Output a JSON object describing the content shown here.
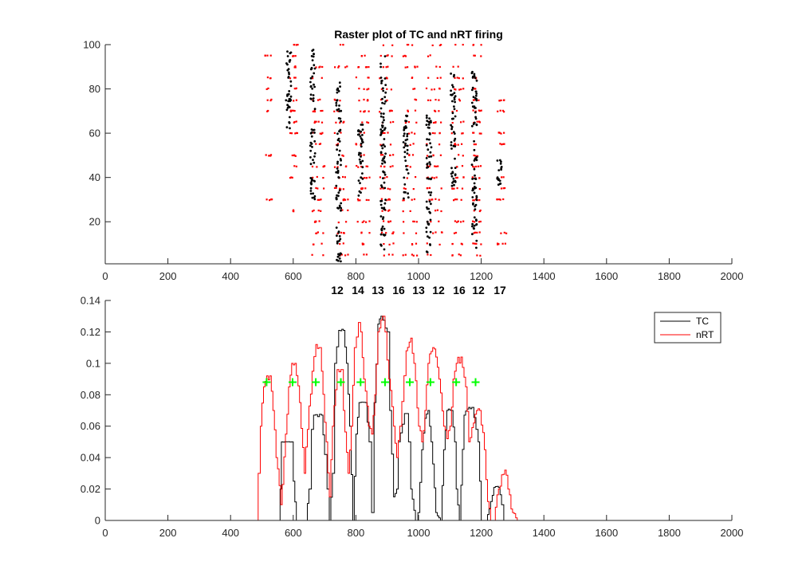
{
  "figure": {
    "title": "Raster plot of TC and nRT firing",
    "cycle_counts": [
      "12",
      "14",
      "13",
      "16",
      "13",
      "12",
      "16",
      "12",
      "17"
    ]
  },
  "colors": {
    "tc": "#000000",
    "nrt": "#ff0000",
    "markers": "#00ff00",
    "axis": "#262626",
    "background": "#ffffff"
  },
  "chart_data": [
    {
      "type": "scatter",
      "title": "Raster plot of TC and nRT firing",
      "xlabel": "",
      "ylabel": "",
      "xlim": [
        0,
        2000
      ],
      "ylim": [
        1,
        100
      ],
      "xticks": [
        0,
        200,
        400,
        600,
        800,
        1000,
        1200,
        1400,
        1600,
        1800,
        2000
      ],
      "yticks": [
        20,
        40,
        60,
        80,
        100
      ],
      "grid": false,
      "series": [
        {
          "name": "TC",
          "bursts": [
            {
              "x": 585,
              "ymin": 62,
              "ymax": 100
            },
            {
              "x": 662,
              "ymin": 30,
              "ymax": 98
            },
            {
              "x": 745,
              "ymin": 2,
              "ymax": 84
            },
            {
              "x": 815,
              "ymin": 30,
              "ymax": 66
            },
            {
              "x": 887,
              "ymin": 6,
              "ymax": 95
            },
            {
              "x": 960,
              "ymin": 30,
              "ymax": 68
            },
            {
              "x": 1033,
              "ymin": 6,
              "ymax": 68
            },
            {
              "x": 1110,
              "ymin": 36,
              "ymax": 88
            },
            {
              "x": 1178,
              "ymin": 8,
              "ymax": 88
            },
            {
              "x": 1258,
              "ymin": 36,
              "ymax": 49
            }
          ]
        },
        {
          "name": "nRT",
          "rows": [
            5,
            10,
            15,
            20,
            25,
            30,
            35,
            40,
            45,
            50,
            55,
            60,
            65,
            70,
            75,
            80,
            85,
            90,
            95,
            100
          ],
          "bursts": [
            {
              "start": 508,
              "end": 532,
              "rows": [
                30,
                50,
                70,
                75,
                80,
                85,
                95
              ]
            },
            {
              "start": 590,
              "end": 615,
              "rows": [
                25,
                40,
                45,
                50,
                60,
                65,
                70,
                75,
                80,
                85,
                90,
                95,
                100
              ]
            },
            {
              "start": 660,
              "end": 700,
              "rows": [
                5,
                10,
                15,
                20,
                25,
                30,
                35,
                40,
                45,
                55,
                60,
                65,
                70,
                75,
                85,
                90
              ]
            },
            {
              "start": 730,
              "end": 775,
              "rows": [
                5,
                10,
                15,
                20,
                25,
                30,
                35,
                40,
                45,
                50,
                55,
                60,
                65,
                70,
                75,
                90,
                100
              ]
            },
            {
              "start": 800,
              "end": 845,
              "rows": [
                5,
                10,
                15,
                20,
                30,
                35,
                40,
                45,
                50,
                55,
                60,
                65,
                70,
                75,
                80,
                85,
                90,
                95
              ]
            },
            {
              "start": 875,
              "end": 920,
              "rows": [
                5,
                10,
                15,
                20,
                25,
                30,
                35,
                40,
                45,
                50,
                55,
                60,
                65,
                70,
                75,
                80,
                85,
                90,
                95,
                100
              ]
            },
            {
              "start": 950,
              "end": 1000,
              "rows": [
                5,
                10,
                15,
                20,
                25,
                30,
                35,
                40,
                45,
                50,
                55,
                60,
                65,
                70,
                75,
                80,
                85,
                90,
                95,
                100
              ]
            },
            {
              "start": 1025,
              "end": 1075,
              "rows": [
                5,
                10,
                15,
                20,
                25,
                30,
                35,
                40,
                45,
                50,
                55,
                60,
                65,
                70,
                75,
                80,
                85,
                90,
                95,
                100
              ]
            },
            {
              "start": 1105,
              "end": 1145,
              "rows": [
                5,
                10,
                15,
                20,
                30,
                35,
                40,
                45,
                50,
                55,
                60,
                65,
                70,
                75,
                80,
                85,
                90,
                100
              ]
            },
            {
              "start": 1172,
              "end": 1200,
              "rows": [
                5,
                10,
                15,
                20,
                25,
                30,
                35,
                40,
                45,
                50,
                55,
                60,
                65,
                70,
                75,
                80,
                85,
                95,
                100
              ]
            },
            {
              "start": 1250,
              "end": 1280,
              "rows": [
                10,
                15,
                30,
                35,
                40,
                55,
                60,
                70,
                75
              ]
            }
          ]
        }
      ]
    },
    {
      "type": "line",
      "title": "",
      "xlabel": "",
      "ylabel": "",
      "xlim": [
        0,
        2000
      ],
      "ylim": [
        0,
        0.14
      ],
      "xticks": [
        0,
        200,
        400,
        600,
        800,
        1000,
        1200,
        1400,
        1600,
        1800,
        2000
      ],
      "yticks": [
        0,
        0.02,
        0.04,
        0.06,
        0.08,
        0.1,
        0.12,
        0.14
      ],
      "ytick_labels": [
        "0",
        "0.02",
        "0.04",
        "0.06",
        "0.08",
        "0.1",
        "0.12",
        "0.14"
      ],
      "grid": false,
      "legend": {
        "position": "top-right",
        "entries": [
          "TC",
          "nRT"
        ]
      },
      "series": [
        {
          "name": "TC",
          "x": [
            0,
            550,
            558,
            562,
            578,
            595,
            600,
            610,
            625,
            640,
            650,
            658,
            665,
            690,
            700,
            708,
            715,
            725,
            732,
            745,
            760,
            770,
            780,
            790,
            800,
            810,
            830,
            842,
            850,
            858,
            870,
            880,
            900,
            908,
            920,
            930,
            935,
            955,
            960,
            968,
            975,
            990,
            998,
            1010,
            1020,
            1030,
            1040,
            1055,
            1070,
            1080,
            1090,
            1105,
            1115,
            1120,
            1130,
            1145,
            1160,
            1170,
            1190,
            1200,
            1215,
            1230,
            1240,
            1255,
            1265,
            1272,
            1290,
            2000
          ],
          "values": [
            0,
            0,
            0.02,
            0.05,
            0.05,
            0.05,
            0.025,
            0,
            0,
            0,
            0.02,
            0.058,
            0.067,
            0.067,
            0.042,
            0.02,
            0,
            0.03,
            0.1,
            0.121,
            0.121,
            0.1,
            0.06,
            0,
            0.055,
            0.075,
            0.075,
            0.05,
            0.005,
            0.075,
            0.125,
            0.13,
            0.12,
            0.07,
            0.015,
            0.02,
            0.05,
            0.068,
            0.068,
            0.05,
            0.02,
            0,
            0.005,
            0.045,
            0.065,
            0.07,
            0.05,
            0.005,
            0,
            0.045,
            0.07,
            0.07,
            0.05,
            0.02,
            0,
            0.067,
            0.072,
            0.072,
            0.05,
            0,
            0,
            0.012,
            0.021,
            0.021,
            0.01,
            0,
            0,
            0
          ]
        },
        {
          "name": "nRT",
          "x": [
            0,
            480,
            488,
            495,
            505,
            515,
            525,
            535,
            545,
            560,
            575,
            585,
            595,
            605,
            620,
            635,
            645,
            660,
            672,
            682,
            690,
            705,
            715,
            725,
            740,
            752,
            760,
            775,
            785,
            795,
            808,
            815,
            825,
            840,
            850,
            860,
            870,
            885,
            893,
            905,
            920,
            930,
            940,
            960,
            975,
            985,
            1000,
            1010,
            1020,
            1030,
            1045,
            1055,
            1065,
            1080,
            1090,
            1100,
            1110,
            1120,
            1135,
            1150,
            1160,
            1175,
            1185,
            1195,
            1210,
            1220,
            1230,
            1240,
            1255,
            1265,
            1275,
            1285,
            1300,
            1315,
            2000
          ],
          "values": [
            0,
            0,
            0.03,
            0.06,
            0.085,
            0.092,
            0.092,
            0.07,
            0.04,
            0.01,
            0.055,
            0.085,
            0.1,
            0.1,
            0.075,
            0.03,
            0.058,
            0.095,
            0.112,
            0.11,
            0.095,
            0.05,
            0.015,
            0.06,
            0.096,
            0.096,
            0.07,
            0.03,
            0.06,
            0.11,
            0.126,
            0.12,
            0.09,
            0.06,
            0.055,
            0.08,
            0.12,
            0.13,
            0.12,
            0.09,
            0.06,
            0.04,
            0.06,
            0.108,
            0.116,
            0.1,
            0.06,
            0.05,
            0.07,
            0.1,
            0.11,
            0.104,
            0.09,
            0.06,
            0.052,
            0.06,
            0.09,
            0.1,
            0.104,
            0.085,
            0.05,
            0.062,
            0.07,
            0.07,
            0.045,
            0.012,
            0,
            0,
            0.02,
            0.029,
            0.032,
            0.02,
            0.005,
            0,
            0
          ]
        },
        {
          "name": "",
          "type": "markers",
          "x": [
            515,
            598,
            672,
            752,
            815,
            893,
            972,
            1038,
            1120,
            1182
          ],
          "values": [
            0.088,
            0.088,
            0.088,
            0.088,
            0.088,
            0.088,
            0.088,
            0.088,
            0.088,
            0.088
          ]
        }
      ]
    }
  ]
}
